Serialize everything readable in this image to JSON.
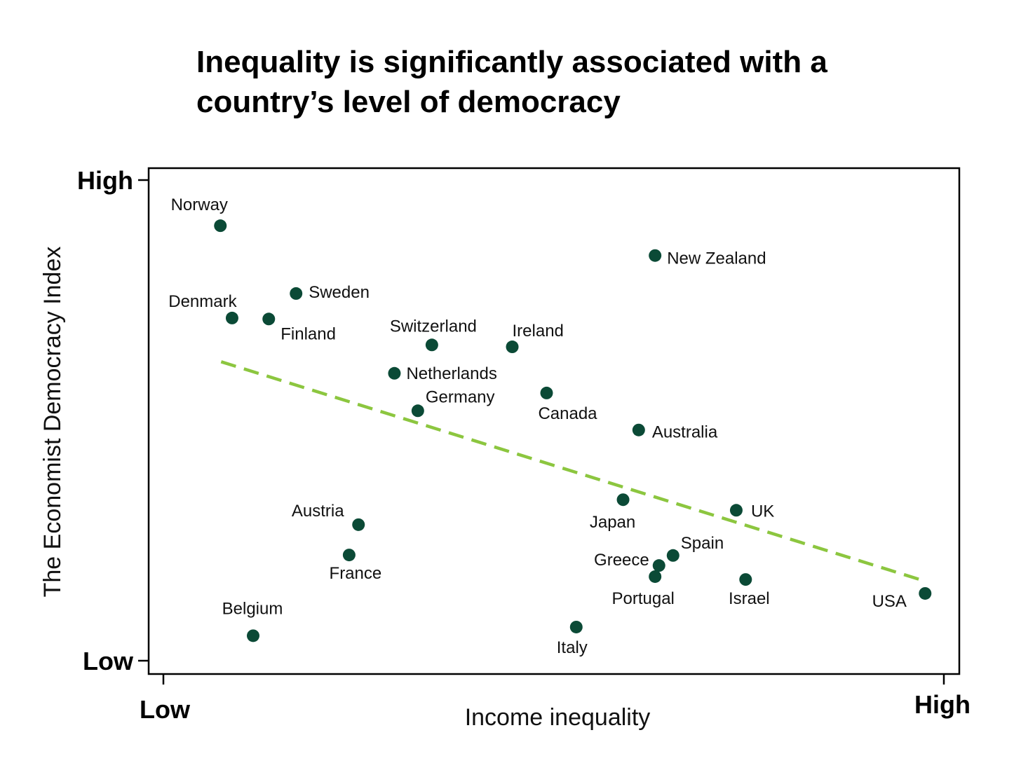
{
  "chart_data": {
    "type": "scatter",
    "title_lines": [
      "Inequality is significantly associated with a",
      "country’s level of democracy"
    ],
    "xlabel": "Income inequality",
    "ylabel": "The Economist Democracy Index",
    "x_tick_labels": [
      "Low",
      "High"
    ],
    "y_tick_labels": [
      "Low",
      "High"
    ],
    "xlim": [
      0,
      1
    ],
    "ylim": [
      0,
      1
    ],
    "grid": false,
    "colors": {
      "points": "#0b4a36",
      "trend": "#8cc63f"
    },
    "points": [
      {
        "label": "Norway",
        "x": 0.073,
        "y": 0.905
      },
      {
        "label": "Denmark",
        "x": 0.088,
        "y": 0.713
      },
      {
        "label": "Finland",
        "x": 0.135,
        "y": 0.711
      },
      {
        "label": "Sweden",
        "x": 0.17,
        "y": 0.764
      },
      {
        "label": "Switzerland",
        "x": 0.344,
        "y": 0.657
      },
      {
        "label": "Ireland",
        "x": 0.447,
        "y": 0.653
      },
      {
        "label": "Netherlands",
        "x": 0.296,
        "y": 0.598
      },
      {
        "label": "Germany",
        "x": 0.326,
        "y": 0.52
      },
      {
        "label": "Canada",
        "x": 0.491,
        "y": 0.557
      },
      {
        "label": "New Zealand",
        "x": 0.63,
        "y": 0.843
      },
      {
        "label": "Australia",
        "x": 0.609,
        "y": 0.48
      },
      {
        "label": "Japan",
        "x": 0.589,
        "y": 0.335
      },
      {
        "label": "UK",
        "x": 0.734,
        "y": 0.313
      },
      {
        "label": "Spain",
        "x": 0.653,
        "y": 0.219
      },
      {
        "label": "Greece",
        "x": 0.635,
        "y": 0.198
      },
      {
        "label": "Portugal",
        "x": 0.63,
        "y": 0.175
      },
      {
        "label": "Israel",
        "x": 0.746,
        "y": 0.169
      },
      {
        "label": "USA",
        "x": 0.976,
        "y": 0.14
      },
      {
        "label": "Italy",
        "x": 0.529,
        "y": 0.07
      },
      {
        "label": "Austria",
        "x": 0.25,
        "y": 0.283
      },
      {
        "label": "France",
        "x": 0.238,
        "y": 0.22
      },
      {
        "label": "Belgium",
        "x": 0.115,
        "y": 0.052
      }
    ],
    "trend_line": {
      "style": "dashed",
      "x": [
        0.074,
        0.977
      ],
      "y": [
        0.622,
        0.165
      ]
    }
  }
}
